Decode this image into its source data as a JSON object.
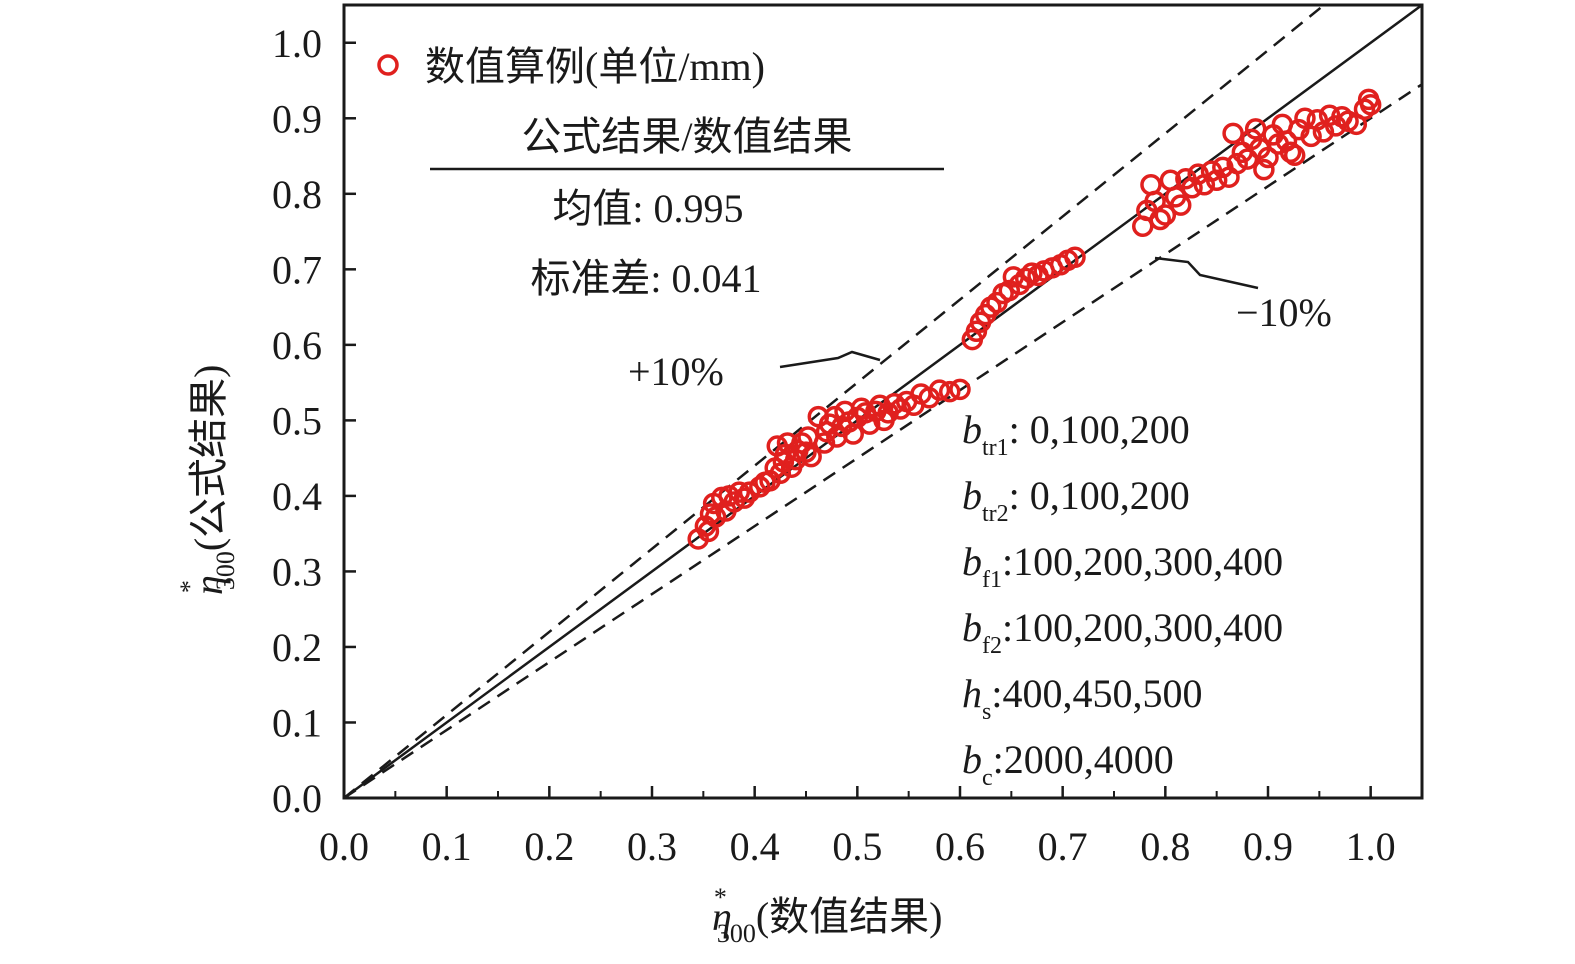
{
  "chart_data": {
    "type": "scatter",
    "xlim": [
      0.0,
      1.05
    ],
    "ylim": [
      0.0,
      1.05
    ],
    "x_ticks": [
      "0.0",
      "0.1",
      "0.2",
      "0.3",
      "0.4",
      "0.5",
      "0.6",
      "0.7",
      "0.8",
      "0.9",
      "1.0"
    ],
    "y_ticks": [
      "0.0",
      "0.1",
      "0.2",
      "0.3",
      "0.4",
      "0.5",
      "0.6",
      "0.7",
      "0.8",
      "0.9",
      "1.0"
    ],
    "xlabel": {
      "symbol": "η",
      "sup": "*",
      "sub": "300",
      "text": "(数值结果)"
    },
    "ylabel": {
      "symbol": "η",
      "sup": "*",
      "sub": "300",
      "text": "(公式结果)"
    },
    "legend": {
      "position": "top-left",
      "label": "数值算例(单位/mm)",
      "marker_color": "#e0201e"
    },
    "stats": {
      "header": "公式结果/数值结果",
      "mean": "均值: 0.995",
      "std": "标准差: 0.041"
    },
    "reference_lines": [
      {
        "label": "",
        "slope": 1.0,
        "style": "solid"
      },
      {
        "label": "+10%",
        "slope": 1.1,
        "style": "dashed"
      },
      {
        "label": "−10%",
        "slope": 0.9,
        "style": "dashed"
      }
    ],
    "parameters": [
      {
        "sym": "b",
        "sub": "tr1",
        "value": ": 0,100,200"
      },
      {
        "sym": "b",
        "sub": "tr2",
        "value": ": 0,100,200"
      },
      {
        "sym": "b",
        "sub": "f1",
        "value": ":100,200,300,400"
      },
      {
        "sym": "b",
        "sub": "f2",
        "value": ":100,200,300,400"
      },
      {
        "sym": "h",
        "sub": "s",
        "value": ":400,450,500"
      },
      {
        "sym": "b",
        "sub": "c",
        "value": ":2000,4000"
      }
    ],
    "series": [
      {
        "marker": "open-circle",
        "color": "#e0201e",
        "points": [
          [
            0.345,
            0.343
          ],
          [
            0.352,
            0.36
          ],
          [
            0.355,
            0.353
          ],
          [
            0.357,
            0.376
          ],
          [
            0.36,
            0.39
          ],
          [
            0.362,
            0.372
          ],
          [
            0.368,
            0.398
          ],
          [
            0.372,
            0.38
          ],
          [
            0.375,
            0.4
          ],
          [
            0.38,
            0.392
          ],
          [
            0.385,
            0.405
          ],
          [
            0.39,
            0.397
          ],
          [
            0.395,
            0.405
          ],
          [
            0.405,
            0.412
          ],
          [
            0.41,
            0.418
          ],
          [
            0.415,
            0.42
          ],
          [
            0.42,
            0.437
          ],
          [
            0.422,
            0.466
          ],
          [
            0.425,
            0.43
          ],
          [
            0.428,
            0.445
          ],
          [
            0.43,
            0.455
          ],
          [
            0.432,
            0.47
          ],
          [
            0.436,
            0.438
          ],
          [
            0.44,
            0.448
          ],
          [
            0.442,
            0.46
          ],
          [
            0.446,
            0.47
          ],
          [
            0.45,
            0.458
          ],
          [
            0.452,
            0.478
          ],
          [
            0.455,
            0.452
          ],
          [
            0.462,
            0.505
          ],
          [
            0.468,
            0.47
          ],
          [
            0.47,
            0.485
          ],
          [
            0.473,
            0.495
          ],
          [
            0.478,
            0.505
          ],
          [
            0.48,
            0.478
          ],
          [
            0.485,
            0.492
          ],
          [
            0.488,
            0.512
          ],
          [
            0.492,
            0.498
          ],
          [
            0.496,
            0.482
          ],
          [
            0.5,
            0.504
          ],
          [
            0.504,
            0.516
          ],
          [
            0.508,
            0.51
          ],
          [
            0.512,
            0.495
          ],
          [
            0.518,
            0.512
          ],
          [
            0.522,
            0.52
          ],
          [
            0.526,
            0.5
          ],
          [
            0.53,
            0.51
          ],
          [
            0.536,
            0.522
          ],
          [
            0.542,
            0.515
          ],
          [
            0.548,
            0.525
          ],
          [
            0.555,
            0.52
          ],
          [
            0.562,
            0.535
          ],
          [
            0.57,
            0.53
          ],
          [
            0.58,
            0.54
          ],
          [
            0.59,
            0.538
          ],
          [
            0.6,
            0.541
          ],
          [
            0.612,
            0.607
          ],
          [
            0.616,
            0.618
          ],
          [
            0.62,
            0.63
          ],
          [
            0.625,
            0.64
          ],
          [
            0.63,
            0.65
          ],
          [
            0.636,
            0.656
          ],
          [
            0.642,
            0.668
          ],
          [
            0.648,
            0.672
          ],
          [
            0.652,
            0.69
          ],
          [
            0.658,
            0.68
          ],
          [
            0.664,
            0.688
          ],
          [
            0.67,
            0.695
          ],
          [
            0.676,
            0.692
          ],
          [
            0.682,
            0.698
          ],
          [
            0.69,
            0.702
          ],
          [
            0.698,
            0.706
          ],
          [
            0.705,
            0.712
          ],
          [
            0.712,
            0.716
          ],
          [
            0.778,
            0.757
          ],
          [
            0.782,
            0.778
          ],
          [
            0.786,
            0.812
          ],
          [
            0.79,
            0.79
          ],
          [
            0.795,
            0.766
          ],
          [
            0.8,
            0.772
          ],
          [
            0.805,
            0.818
          ],
          [
            0.81,
            0.796
          ],
          [
            0.815,
            0.785
          ],
          [
            0.82,
            0.82
          ],
          [
            0.826,
            0.808
          ],
          [
            0.832,
            0.826
          ],
          [
            0.838,
            0.812
          ],
          [
            0.845,
            0.83
          ],
          [
            0.85,
            0.818
          ],
          [
            0.856,
            0.835
          ],
          [
            0.862,
            0.822
          ],
          [
            0.866,
            0.88
          ],
          [
            0.87,
            0.84
          ],
          [
            0.875,
            0.855
          ],
          [
            0.88,
            0.846
          ],
          [
            0.884,
            0.872
          ],
          [
            0.888,
            0.886
          ],
          [
            0.892,
            0.86
          ],
          [
            0.896,
            0.832
          ],
          [
            0.9,
            0.848
          ],
          [
            0.905,
            0.878
          ],
          [
            0.91,
            0.866
          ],
          [
            0.914,
            0.892
          ],
          [
            0.918,
            0.87
          ],
          [
            0.922,
            0.855
          ],
          [
            0.926,
            0.851
          ],
          [
            0.93,
            0.885
          ],
          [
            0.936,
            0.9
          ],
          [
            0.942,
            0.876
          ],
          [
            0.948,
            0.898
          ],
          [
            0.954,
            0.882
          ],
          [
            0.96,
            0.904
          ],
          [
            0.966,
            0.89
          ],
          [
            0.972,
            0.902
          ],
          [
            0.978,
            0.896
          ],
          [
            0.986,
            0.892
          ],
          [
            0.994,
            0.912
          ],
          [
            0.998,
            0.925
          ],
          [
            1.0,
            0.918
          ]
        ]
      }
    ]
  }
}
